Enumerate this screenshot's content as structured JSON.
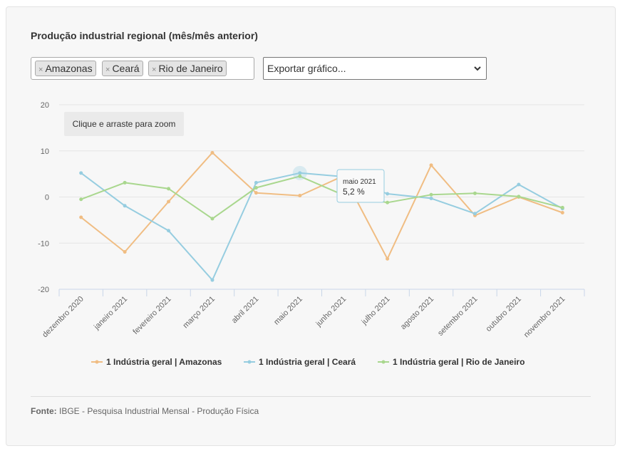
{
  "title": "Produção industrial regional (mês/mês anterior)",
  "filter_tags": [
    "Amazonas",
    "Ceará",
    "Rio de Janeiro"
  ],
  "export_select": {
    "value": "Exportar gráfico..."
  },
  "zoom_hint": "Clique e arraste para zoom",
  "tooltip": {
    "label": "maio 2021",
    "value": "5,2 %"
  },
  "source": {
    "label": "Fonte:",
    "text": "IBGE - Pesquisa Industrial Mensal - Produção Física"
  },
  "colors": {
    "amazonas": "#f0bd83",
    "ceara": "#96cde0",
    "rio": "#a9d78e"
  },
  "chart_data": {
    "type": "line",
    "categories": [
      "dezembro 2020",
      "janeiro 2021",
      "fevereiro 2021",
      "março 2021",
      "abril 2021",
      "maio 2021",
      "junho 2021",
      "julho 2021",
      "agosto 2021",
      "setembro 2021",
      "outubro 2021",
      "novembro 2021"
    ],
    "y_ticks": [
      "20",
      "10",
      "0",
      "-10",
      "-20"
    ],
    "ylim": [
      -20,
      20
    ],
    "grid": true,
    "legend_position": "bottom-center",
    "highlighted": {
      "series": 1,
      "index": 5
    },
    "series": [
      {
        "name": "1 Indústria geral | Amazonas",
        "values": [
          -4.4,
          -11.9,
          -1.0,
          9.6,
          0.9,
          0.3,
          4.6,
          -13.4,
          6.9,
          -4.0,
          0.0,
          -3.4
        ]
      },
      {
        "name": "1 Indústria geral | Ceará",
        "values": [
          5.2,
          -1.9,
          -7.3,
          -18.0,
          3.1,
          5.2,
          4.4,
          0.7,
          -0.3,
          -3.6,
          2.7,
          -2.5
        ]
      },
      {
        "name": "1 Indústria geral | Rio de Janeiro",
        "values": [
          -0.5,
          3.1,
          1.8,
          -4.7,
          2.0,
          4.5,
          0.4,
          -1.2,
          0.5,
          0.8,
          0.1,
          -2.3
        ]
      }
    ]
  }
}
